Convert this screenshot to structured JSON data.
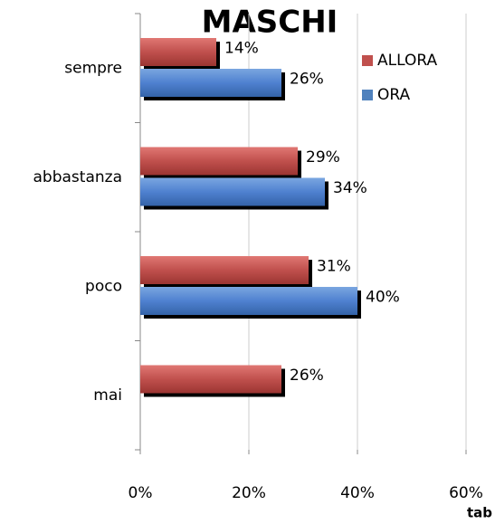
{
  "chart_data": {
    "type": "bar",
    "orientation": "horizontal",
    "title": "MASCHI",
    "note": "tab",
    "categories": [
      "sempre",
      "abbastanza",
      "poco",
      "mai"
    ],
    "series": [
      {
        "name": "ALLORA",
        "color": "#c0504d",
        "values": [
          14,
          29,
          31,
          26
        ],
        "value_labels": [
          "14%",
          "29%",
          "31%",
          "26%"
        ]
      },
      {
        "name": "ORA",
        "color": "#4f81bd",
        "values": [
          26,
          34,
          40,
          null
        ],
        "value_labels": [
          "26%",
          "34%",
          "40%",
          null
        ]
      }
    ],
    "xlim": [
      0,
      60
    ],
    "xticks": [
      {
        "value": 0,
        "label": "0%"
      },
      {
        "value": 20,
        "label": "20%"
      },
      {
        "value": 40,
        "label": "40%"
      },
      {
        "value": 60,
        "label": "60%"
      }
    ],
    "grid": true,
    "legend": "upper right"
  }
}
